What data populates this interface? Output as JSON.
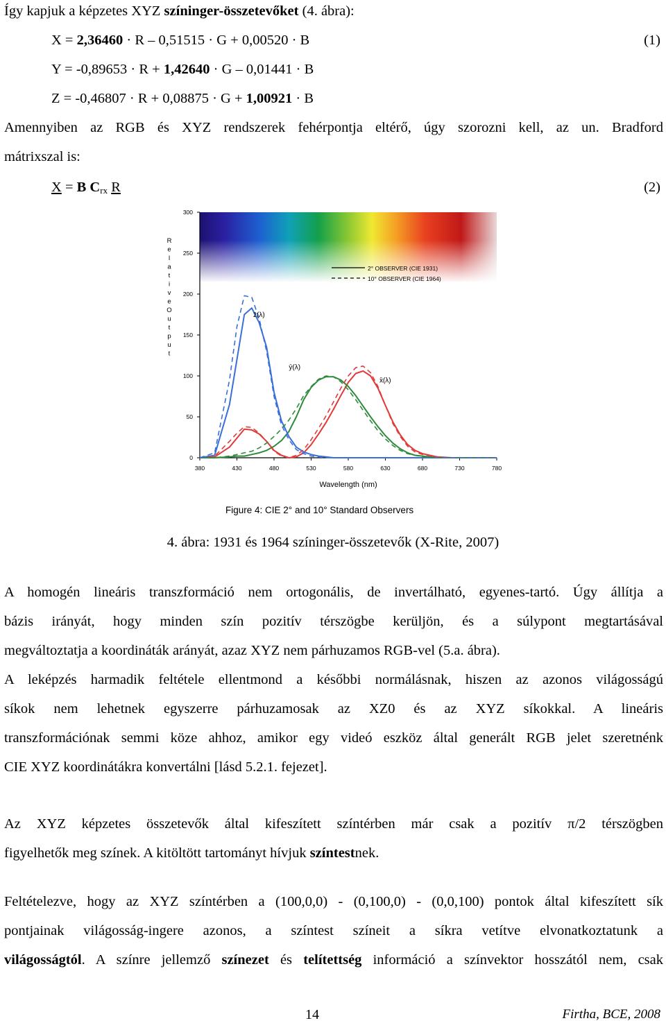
{
  "intro": {
    "text_pre": "Így kapjuk a képzetes XYZ ",
    "text_bold": "színinger-összetevőket",
    "text_post": " (4. ábra):"
  },
  "eq1": {
    "x_a": "X = ",
    "x_b": "2,36460",
    "x_c": " · R – 0,51515 · G + 0,00520 · B",
    "y_a": "Y = -0,89653 · R + ",
    "y_b": "1,42640",
    "y_c": " · G – 0,01441 · B",
    "z_a": "Z = -0,46807 · R + 0,08875 · G + ",
    "z_b": "1,00921",
    "z_c": " · B",
    "number": "(1)"
  },
  "bradford": {
    "line1": "Amennyiben az RGB és XYZ rendszerek fehérpontja eltérő, úgy szorozni kell, az un. Bradford",
    "line2": "mátrixszal is:"
  },
  "eq2": {
    "x": "X",
    "eq": " = ",
    "b": "B C",
    "sub": "rx",
    "r": "R",
    "number": "(2)"
  },
  "figure": {
    "yaxis_label": "Relative Output",
    "yticks": [
      "300",
      "250",
      "200",
      "150",
      "100",
      "50",
      "0"
    ],
    "xticks": [
      "380",
      "430",
      "480",
      "530",
      "580",
      "630",
      "680",
      "730",
      "780"
    ],
    "xlabel": "Wavelength (nm)",
    "legend_solid": "2° OBSERVER (CIE 1931)",
    "legend_dashed": "10° OBSERVER (CIE 1964)",
    "label_z": "z̄(λ)",
    "label_y": "ȳ(λ)",
    "label_x": "x̄(λ)",
    "fig_title": "Figure 4: CIE 2° and 10° Standard Observers",
    "colors": {
      "x": "#e03a3a",
      "y": "#2e8a3c",
      "z": "#3a6fd8"
    }
  },
  "chart_data": {
    "type": "line",
    "title": "Figure 4: CIE 2° and 10° Standard Observers",
    "xlabel": "Wavelength (nm)",
    "ylabel": "Relative Output",
    "xlim": [
      380,
      780
    ],
    "ylim": [
      0,
      300
    ],
    "x": [
      380,
      400,
      420,
      430,
      440,
      450,
      460,
      470,
      480,
      490,
      500,
      510,
      520,
      530,
      540,
      550,
      560,
      570,
      580,
      590,
      600,
      610,
      620,
      630,
      640,
      650,
      660,
      670,
      680,
      700,
      720,
      740,
      760,
      780
    ],
    "series": [
      {
        "name": "x̄(λ) 2° OBSERVER (CIE 1931)",
        "style": "solid",
        "color": "#e03a3a",
        "values": [
          0,
          1,
          13,
          24,
          35,
          34,
          29,
          20,
          9,
          3,
          0,
          1,
          6,
          16,
          29,
          43,
          59,
          76,
          92,
          103,
          106,
          100,
          85,
          64,
          44,
          28,
          16,
          9,
          5,
          1,
          0,
          0,
          0,
          0
        ]
      },
      {
        "name": "ȳ(λ) 2° OBSERVER (CIE 1931)",
        "style": "solid",
        "color": "#2e8a3c",
        "values": [
          0,
          0,
          1,
          2,
          2,
          4,
          6,
          9,
          14,
          21,
          32,
          50,
          71,
          86,
          95,
          99,
          99,
          95,
          87,
          76,
          63,
          50,
          38,
          27,
          18,
          11,
          6,
          3,
          2,
          0,
          0,
          0,
          0,
          0
        ]
      },
      {
        "name": "z̄(λ) 2° OBSERVER (CIE 1931)",
        "style": "solid",
        "color": "#3a6fd8",
        "values": [
          0,
          3,
          65,
          120,
          175,
          183,
          165,
          135,
          80,
          45,
          26,
          13,
          7,
          4,
          2,
          1,
          0,
          0,
          0,
          0,
          0,
          0,
          0,
          0,
          0,
          0,
          0,
          0,
          0,
          0,
          0,
          0,
          0,
          0
        ]
      },
      {
        "name": "x̄(λ) 10° OBSERVER (CIE 1964)",
        "style": "dashed",
        "color": "#e03a3a",
        "values": [
          0,
          2,
          20,
          30,
          38,
          37,
          30,
          20,
          8,
          2,
          0,
          3,
          10,
          22,
          36,
          51,
          68,
          85,
          100,
          110,
          112,
          104,
          87,
          64,
          42,
          26,
          14,
          7,
          4,
          1,
          0,
          0,
          0,
          0
        ]
      },
      {
        "name": "ȳ(λ) 10° OBSERVER (CIE 1964)",
        "style": "dashed",
        "color": "#2e8a3c",
        "values": [
          0,
          0,
          2,
          4,
          6,
          8,
          12,
          18,
          26,
          35,
          46,
          60,
          76,
          87,
          96,
          100,
          99,
          93,
          83,
          71,
          58,
          45,
          33,
          23,
          15,
          9,
          5,
          3,
          1,
          0,
          0,
          0,
          0,
          0
        ]
      },
      {
        "name": "z̄(λ) 10° OBSERVER (CIE 1964)",
        "style": "dashed",
        "color": "#3a6fd8",
        "values": [
          0,
          6,
          95,
          160,
          198,
          196,
          170,
          130,
          75,
          40,
          22,
          10,
          5,
          2,
          1,
          0,
          0,
          0,
          0,
          0,
          0,
          0,
          0,
          0,
          0,
          0,
          0,
          0,
          0,
          0,
          0,
          0,
          0,
          0
        ]
      }
    ],
    "legend": "top-right",
    "grid": false
  },
  "caption": "4. ábra: 1931 és 1964 színinger-összetevők (X-Rite, 2007)",
  "para1": {
    "l1": "A homogén lineáris transzformáció nem ortogonális, de invertálható, egyenes-tartó. Úgy állítja a",
    "l2": "bázis irányát, hogy minden szín pozitív térszögbe kerüljön, és a súlypont megtartásával",
    "l3": "megváltoztatja a koordináták arányát, azaz XYZ nem párhuzamos RGB-vel (5.a. ábra).",
    "l4": "A leképzés harmadik feltétele ellentmond a későbbi normálásnak, hiszen az azonos világosságú",
    "l5": "síkok nem lehetnek egyszerre párhuzamosak az XZ0 és az XYZ síkokkal. A lineáris",
    "l6": "transzformációnak semmi köze ahhoz, amikor egy videó eszköz által generált RGB jelet szeretnénk",
    "l7": "CIE XYZ koordinátákra konvertálni [lásd 5.2.1. fejezet]."
  },
  "para2": {
    "l1": "Az XYZ képzetes összetevők által kifeszített színtérben már csak a pozitív π/2 térszögben",
    "l2_pre": "figyelhetők meg színek. A kitöltött tartományt hívjuk ",
    "l2_bold": "színtest",
    "l2_post": "nek."
  },
  "para3": {
    "l1": "Feltételezve, hogy az XYZ színtérben a (100,0,0) - (0,100,0) - (0,0,100) pontok által kifeszített sík",
    "l2": "pontjainak világosság-ingere azonos, a színtest színeit a síkra vetítve elvonatkoztatunk a",
    "l3_b1": "világosságtól",
    "l3_t1": ". A színre jellemző ",
    "l3_b2": "színezet",
    "l3_t2": " és ",
    "l3_b3": "telítettség",
    "l3_t3": " információ a színvektor hosszától nem, csak"
  },
  "footer": {
    "page": "14",
    "author": "Firtha, BCE, 2008"
  }
}
